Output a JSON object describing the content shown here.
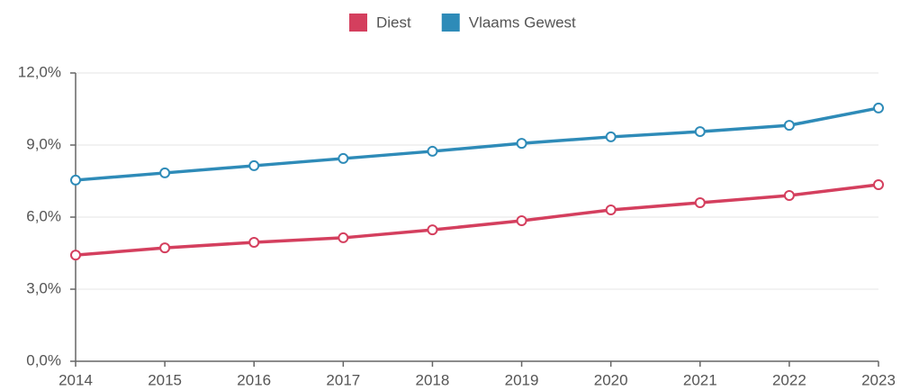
{
  "chart_data": {
    "type": "line",
    "x": [
      2014,
      2015,
      2016,
      2017,
      2018,
      2019,
      2020,
      2021,
      2022,
      2023
    ],
    "xlim": [
      2014,
      2023
    ],
    "xticks": [
      2014,
      2015,
      2016,
      2017,
      2018,
      2019,
      2020,
      2021,
      2022,
      2023
    ],
    "series": [
      {
        "name": "Diest",
        "color": "#d43f5e",
        "values": [
          4.42,
          4.72,
          4.95,
          5.14,
          5.47,
          5.85,
          6.3,
          6.6,
          6.9,
          7.35
        ]
      },
      {
        "name": "Vlaams Gewest",
        "color": "#2e8bb8",
        "values": [
          7.54,
          7.84,
          8.14,
          8.44,
          8.74,
          9.07,
          9.34,
          9.56,
          9.82,
          10.54
        ]
      }
    ],
    "ylim": [
      0,
      12
    ],
    "yticks": [
      {
        "value": 0,
        "label": "0,0%"
      },
      {
        "value": 3,
        "label": "3,0%"
      },
      {
        "value": 6,
        "label": "6,0%"
      },
      {
        "value": 9,
        "label": "9,0%"
      },
      {
        "value": 12,
        "label": "12,0%"
      }
    ],
    "grid": true,
    "legend": "top"
  }
}
